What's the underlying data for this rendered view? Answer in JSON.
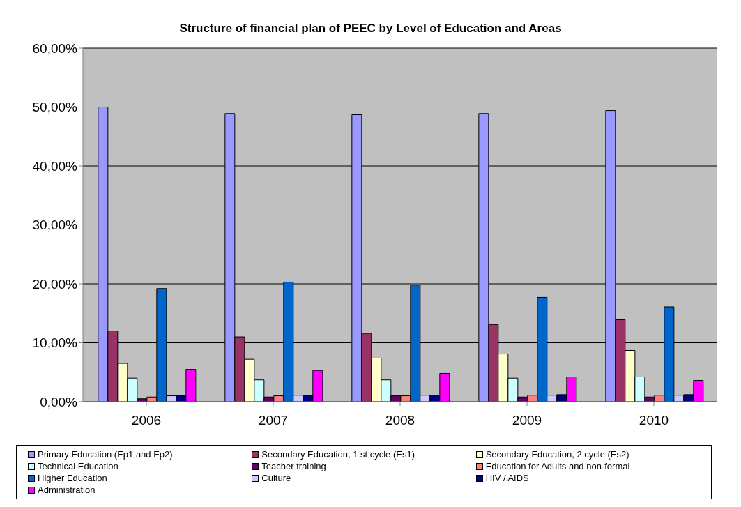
{
  "chart_data": {
    "type": "bar",
    "title": "Structure of financial plan of PEEC by Level of Education and Areas",
    "categories": [
      "2006",
      "2007",
      "2008",
      "2009",
      "2010"
    ],
    "series": [
      {
        "name": "Primary Education (Ep1 and Ep2)",
        "color": "#9999ff",
        "values": [
          50.0,
          48.9,
          48.7,
          48.9,
          49.4
        ]
      },
      {
        "name": "Secondary Education, 1 st cycle (Es1)",
        "color": "#993366",
        "values": [
          12.0,
          11.0,
          11.6,
          13.1,
          13.9
        ]
      },
      {
        "name": "Secondary Education, 2 cycle (Es2)",
        "color": "#ffffcc",
        "values": [
          6.5,
          7.2,
          7.4,
          8.1,
          8.7
        ]
      },
      {
        "name": "Technical Education",
        "color": "#ccffff",
        "values": [
          4.0,
          3.7,
          3.7,
          4.0,
          4.2
        ]
      },
      {
        "name": "Teacher training",
        "color": "#660066",
        "values": [
          0.5,
          0.8,
          1.0,
          0.8,
          0.8
        ]
      },
      {
        "name": "Education for Adults and non-formal",
        "color": "#ff8080",
        "values": [
          0.8,
          1.0,
          1.0,
          1.1,
          1.1
        ]
      },
      {
        "name": "Higher Education",
        "color": "#0066cc",
        "values": [
          19.2,
          20.3,
          19.8,
          17.7,
          16.1
        ]
      },
      {
        "name": "Culture",
        "color": "#ccccff",
        "values": [
          1.0,
          1.1,
          1.1,
          1.1,
          1.1
        ]
      },
      {
        "name": "HIV / AIDS",
        "color": "#000080",
        "values": [
          1.0,
          1.1,
          1.1,
          1.2,
          1.2
        ]
      },
      {
        "name": "Administration",
        "color": "#ff00ff",
        "values": [
          5.5,
          5.3,
          4.8,
          4.2,
          3.6
        ]
      }
    ],
    "ylim": [
      0,
      60
    ],
    "yticks": [
      {
        "value": 0,
        "label": "0,00%"
      },
      {
        "value": 10,
        "label": "10,00%"
      },
      {
        "value": 20,
        "label": "20,00%"
      },
      {
        "value": 30,
        "label": "30,00%"
      },
      {
        "value": 40,
        "label": "40,00%"
      },
      {
        "value": 50,
        "label": "50,00%"
      },
      {
        "value": 60,
        "label": "60,00%"
      }
    ],
    "grid": "y",
    "legend": "bottom"
  }
}
